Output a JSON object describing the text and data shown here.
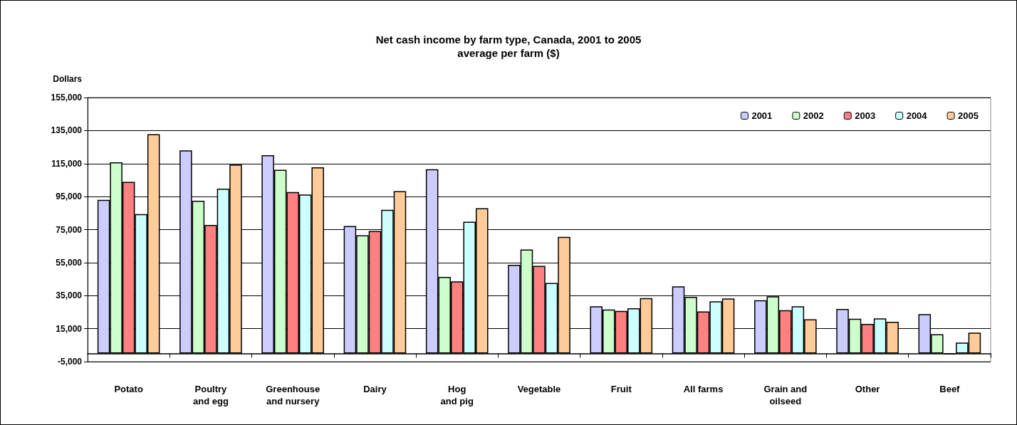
{
  "chart_data": {
    "type": "bar",
    "title": "Net cash income by farm type, Canada, 2001 to 2005",
    "subtitle": "average per farm ($)",
    "ylabel": "Dollars",
    "categories": [
      "Potato",
      "Poultry\nand egg",
      "Greenhouse\nand nursery",
      "Dairy",
      "Hog\nand pig",
      "Vegetable",
      "Fruit",
      "All farms",
      "Grain and\noilseed",
      "Other",
      "Beef"
    ],
    "series": [
      {
        "name": "2001",
        "color": "#ccccff",
        "values": [
          93000,
          123000,
          120100,
          77200,
          111600,
          53600,
          28500,
          40600,
          32200,
          26900,
          23800
        ]
      },
      {
        "name": "2002",
        "color": "#ccffcc",
        "values": [
          115800,
          92500,
          111200,
          71600,
          46300,
          62900,
          26600,
          34200,
          34600,
          21000,
          11600
        ]
      },
      {
        "name": "2003",
        "color": "#ff8080",
        "values": [
          103900,
          77800,
          97800,
          74100,
          43600,
          53000,
          25700,
          25400,
          26200,
          17900,
          -700
        ]
      },
      {
        "name": "2004",
        "color": "#ccffff",
        "values": [
          84400,
          99800,
          96200,
          87000,
          79700,
          42700,
          27300,
          31500,
          28500,
          21200,
          6500
        ]
      },
      {
        "name": "2005",
        "color": "#ffcc99",
        "values": [
          132800,
          114300,
          112700,
          98300,
          87900,
          70600,
          33500,
          33300,
          20700,
          19100,
          12600
        ]
      }
    ],
    "ylim": [
      -5000,
      155000
    ],
    "yticks": [
      {
        "value": -5000,
        "label": "-5,000"
      },
      {
        "value": 15000,
        "label": "15,000"
      },
      {
        "value": 35000,
        "label": "35,000"
      },
      {
        "value": 55000,
        "label": "55,000"
      },
      {
        "value": 75000,
        "label": "75,000"
      },
      {
        "value": 95000,
        "label": "95,000"
      },
      {
        "value": 115000,
        "label": "115,000"
      },
      {
        "value": 135000,
        "label": "135,000"
      },
      {
        "value": 155000,
        "label": "155,000"
      }
    ],
    "grid": "y",
    "legend": "top right"
  }
}
